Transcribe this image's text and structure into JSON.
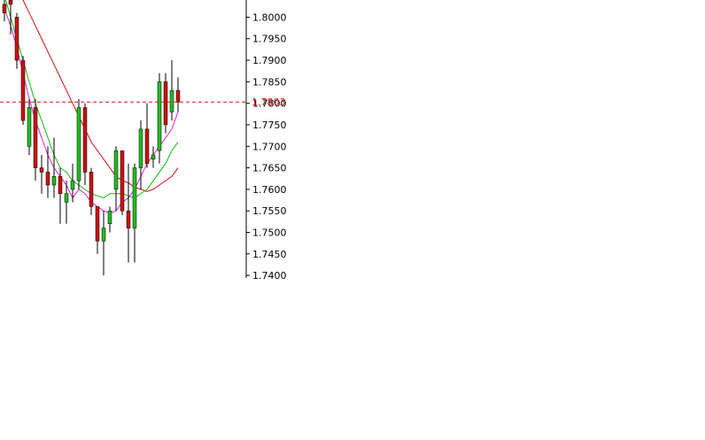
{
  "chart_data": {
    "type": "candlestick",
    "y_axis": {
      "ticks": [
        "1.8000",
        "1.7950",
        "1.7900",
        "1.7850",
        "1.7800",
        "1.7750",
        "1.7700",
        "1.7650",
        "1.7600",
        "1.7550",
        "1.7500",
        "1.7450",
        "1.7400"
      ],
      "tick_values": [
        1.8,
        1.795,
        1.79,
        1.785,
        1.78,
        1.775,
        1.77,
        1.765,
        1.76,
        1.755,
        1.75,
        1.745,
        1.74
      ],
      "range": [
        1.7394,
        1.804
      ],
      "position": "right"
    },
    "current_price": {
      "value": 1.7803,
      "label": "1.7803",
      "color": "#d01818"
    },
    "colors": {
      "bull": "#22bb22",
      "bear": "#cc1111",
      "wick": "#000000",
      "ma_fast": "#e020e0",
      "ma_mid": "#11bb11",
      "ma_slow": "#cc1111"
    },
    "candles": [
      {
        "o": 1.803,
        "h": 1.805,
        "l": 1.799,
        "c": 1.801
      },
      {
        "o": 1.804,
        "h": 1.806,
        "l": 1.796,
        "c": 1.803
      },
      {
        "o": 1.8,
        "h": 1.801,
        "l": 1.788,
        "c": 1.79
      },
      {
        "o": 1.79,
        "h": 1.791,
        "l": 1.775,
        "c": 1.776
      },
      {
        "o": 1.77,
        "h": 1.781,
        "l": 1.768,
        "c": 1.779
      },
      {
        "o": 1.779,
        "h": 1.781,
        "l": 1.762,
        "c": 1.765
      },
      {
        "o": 1.765,
        "h": 1.768,
        "l": 1.759,
        "c": 1.764
      },
      {
        "o": 1.764,
        "h": 1.77,
        "l": 1.758,
        "c": 1.761
      },
      {
        "o": 1.761,
        "h": 1.772,
        "l": 1.758,
        "c": 1.763
      },
      {
        "o": 1.763,
        "h": 1.765,
        "l": 1.752,
        "c": 1.759
      },
      {
        "o": 1.757,
        "h": 1.762,
        "l": 1.752,
        "c": 1.759
      },
      {
        "o": 1.76,
        "h": 1.766,
        "l": 1.757,
        "c": 1.762
      },
      {
        "o": 1.762,
        "h": 1.781,
        "l": 1.76,
        "c": 1.779
      },
      {
        "o": 1.779,
        "h": 1.78,
        "l": 1.761,
        "c": 1.764
      },
      {
        "o": 1.764,
        "h": 1.765,
        "l": 1.754,
        "c": 1.756
      },
      {
        "o": 1.756,
        "h": 1.756,
        "l": 1.745,
        "c": 1.748
      },
      {
        "o": 1.748,
        "h": 1.755,
        "l": 1.74,
        "c": 1.751
      },
      {
        "o": 1.752,
        "h": 1.756,
        "l": 1.75,
        "c": 1.755
      },
      {
        "o": 1.76,
        "h": 1.77,
        "l": 1.755,
        "c": 1.769
      },
      {
        "o": 1.769,
        "h": 1.769,
        "l": 1.754,
        "c": 1.755
      },
      {
        "o": 1.755,
        "h": 1.766,
        "l": 1.743,
        "c": 1.751
      },
      {
        "o": 1.751,
        "h": 1.766,
        "l": 1.743,
        "c": 1.765
      },
      {
        "o": 1.765,
        "h": 1.776,
        "l": 1.76,
        "c": 1.774
      },
      {
        "o": 1.774,
        "h": 1.78,
        "l": 1.765,
        "c": 1.766
      },
      {
        "o": 1.767,
        "h": 1.77,
        "l": 1.765,
        "c": 1.768
      },
      {
        "o": 1.769,
        "h": 1.787,
        "l": 1.766,
        "c": 1.785
      },
      {
        "o": 1.785,
        "h": 1.787,
        "l": 1.773,
        "c": 1.775
      },
      {
        "o": 1.778,
        "h": 1.79,
        "l": 1.776,
        "c": 1.783
      },
      {
        "o": 1.783,
        "h": 1.786,
        "l": 1.778,
        "c": 1.7803
      }
    ],
    "ma_slow": [
      1.81,
      1.808,
      1.806,
      1.804,
      1.801,
      1.798,
      1.795,
      1.792,
      1.789,
      1.786,
      1.783,
      1.78,
      1.777,
      1.774,
      1.771,
      1.769,
      1.767,
      1.765,
      1.763,
      1.762,
      1.7615,
      1.7605,
      1.76,
      1.7595,
      1.76,
      1.761,
      1.762,
      1.763,
      1.765
    ],
    "ma_mid": [
      1.805,
      1.8,
      1.795,
      1.79,
      1.785,
      1.78,
      1.776,
      1.772,
      1.768,
      1.765,
      1.764,
      1.762,
      1.761,
      1.76,
      1.759,
      1.7585,
      1.758,
      1.759,
      1.759,
      1.759,
      1.7585,
      1.758,
      1.759,
      1.76,
      1.762,
      1.764,
      1.766,
      1.769,
      1.771
    ],
    "ma_fast": [
      1.802,
      1.798,
      1.793,
      1.787,
      1.781,
      1.776,
      1.772,
      1.768,
      1.765,
      1.763,
      1.761,
      1.758,
      1.76,
      1.759,
      1.757,
      1.756,
      1.755,
      1.7545,
      1.755,
      1.757,
      1.758,
      1.76,
      1.763,
      1.766,
      1.768,
      1.77,
      1.772,
      1.774,
      1.778
    ]
  }
}
